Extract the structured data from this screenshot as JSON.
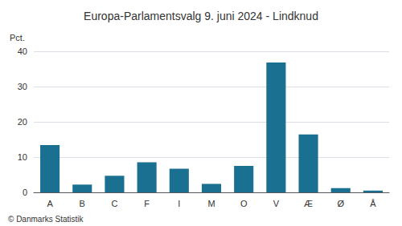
{
  "chart_data": {
    "type": "bar",
    "title": "Europa-Parlamentsvalg 9. juni 2024 - Lindknud",
    "ylabel": "Pct.",
    "annotations": [
      "© Danmarks Statistik"
    ],
    "categories": [
      "A",
      "B",
      "C",
      "F",
      "I",
      "M",
      "O",
      "V",
      "Æ",
      "Ø",
      "Å"
    ],
    "values": [
      13.4,
      2.2,
      4.7,
      8.5,
      6.7,
      2.4,
      7.5,
      36.8,
      16.4,
      1.2,
      0.5
    ],
    "color": "#1a7090",
    "ylim": [
      0,
      40
    ],
    "yticks": [
      0,
      10,
      20,
      30,
      40
    ],
    "grid": true
  }
}
